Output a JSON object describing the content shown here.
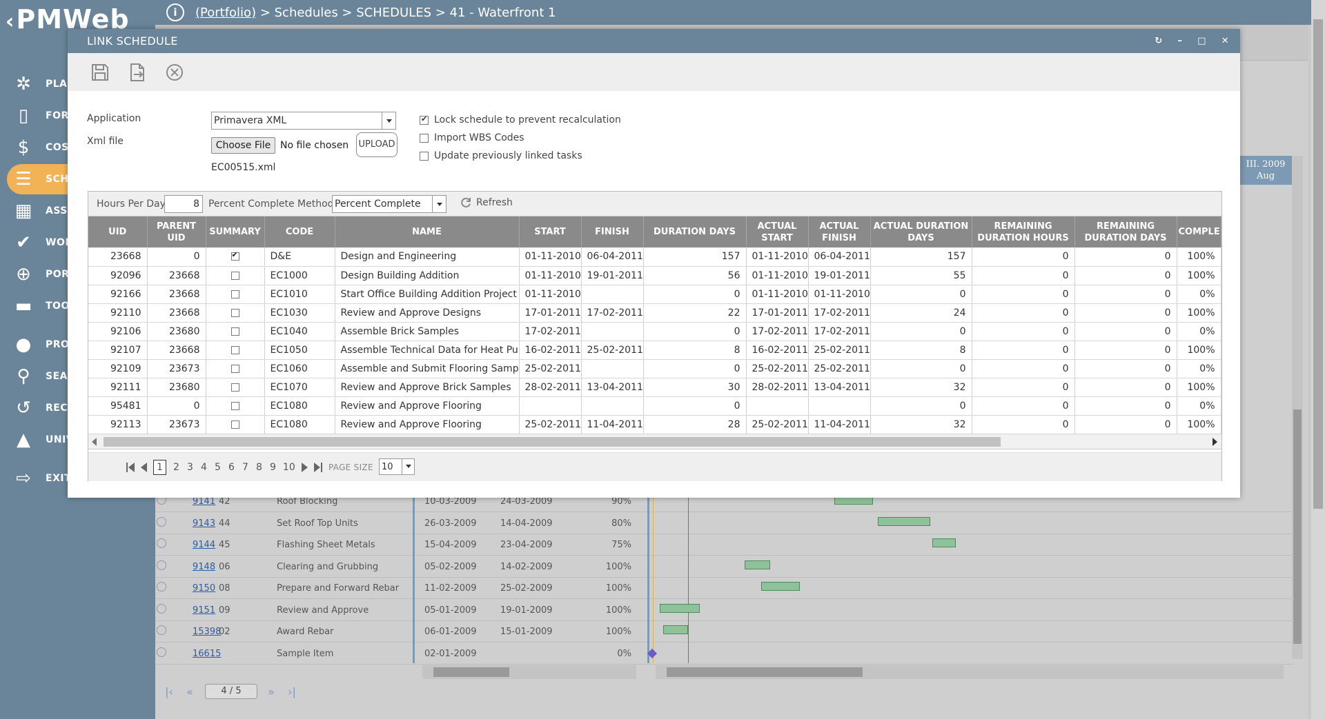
{
  "app": {
    "logo": "PMWeb"
  },
  "breadcrumb": {
    "portfolio": "(Portfolio)",
    "rest": " > Schedules > SCHEDULES > 41 - Waterfront 1"
  },
  "sidebar": {
    "items": [
      {
        "label": "PLAN",
        "icon": "lightbulb-icon"
      },
      {
        "label": "FORM",
        "icon": "clipboard-icon"
      },
      {
        "label": "COST",
        "icon": "dollar-icon"
      },
      {
        "label": "SCH",
        "icon": "schedule-icon"
      },
      {
        "label": "ASSE",
        "icon": "building-icon"
      },
      {
        "label": "WOR",
        "icon": "check-icon"
      },
      {
        "label": "PORT",
        "icon": "globe-icon"
      },
      {
        "label": "TOOL",
        "icon": "briefcase-icon"
      },
      {
        "label": "PROF",
        "icon": "person-icon"
      },
      {
        "label": "SEAR",
        "icon": "search-icon"
      },
      {
        "label": "RECE",
        "icon": "history-icon"
      },
      {
        "label": "UNIVERSITY",
        "icon": "graduation-cap-icon"
      },
      {
        "label": "EXIT",
        "icon": "exit-icon"
      }
    ]
  },
  "background": {
    "timeline_head": {
      "line1": "III. 2009",
      "line2": "Aug"
    },
    "rows": [
      {
        "id": "9141",
        "num": "42",
        "name": "Roof Blocking",
        "start": "10-03-2009",
        "finish": "24-03-2009",
        "pct": "90%"
      },
      {
        "id": "9143",
        "num": "44",
        "name": "Set Roof Top Units",
        "start": "26-03-2009",
        "finish": "14-04-2009",
        "pct": "80%"
      },
      {
        "id": "9144",
        "num": "45",
        "name": "Flashing Sheet Metals",
        "start": "15-04-2009",
        "finish": "23-04-2009",
        "pct": "75%"
      },
      {
        "id": "9148",
        "num": "06",
        "name": "Clearing and Grubbing",
        "start": "05-02-2009",
        "finish": "14-02-2009",
        "pct": "100%"
      },
      {
        "id": "9150",
        "num": "08",
        "name": "Prepare and Forward Rebar",
        "start": "11-02-2009",
        "finish": "25-02-2009",
        "pct": "100%"
      },
      {
        "id": "9151",
        "num": "09",
        "name": "Review and Approve",
        "start": "05-01-2009",
        "finish": "19-01-2009",
        "pct": "100%"
      },
      {
        "id": "15398",
        "num": "02",
        "name": "Award Rebar",
        "start": "06-01-2009",
        "finish": "15-01-2009",
        "pct": "100%"
      },
      {
        "id": "16615",
        "num": "",
        "name": "Sample Item",
        "start": "02-01-2009",
        "finish": "",
        "pct": "0%"
      }
    ],
    "pager": {
      "page": "4 / 5"
    }
  },
  "modal": {
    "title": "LINK SCHEDULE",
    "form": {
      "application_label": "Application",
      "application_value": "Primavera XML",
      "xml_label": "Xml file",
      "choose_file": "Choose File",
      "no_file": "No file chosen",
      "upload": "UPLOAD",
      "xml_filename": "EC00515.xml",
      "options": [
        {
          "label": "Lock schedule to prevent recalculation",
          "checked": true
        },
        {
          "label": "Import WBS Codes",
          "checked": false
        },
        {
          "label": "Update previously linked tasks",
          "checked": false
        }
      ]
    },
    "grid_toolbar": {
      "hours_label": "Hours Per Day",
      "hours_value": "8",
      "pcm_label": "Percent Complete Method",
      "pcm_value": "Percent Complete",
      "refresh": "Refresh"
    },
    "columns": [
      "UID",
      "PARENT UID",
      "SUMMARY",
      "CODE",
      "NAME",
      "START",
      "FINISH",
      "DURATION DAYS",
      "ACTUAL START",
      "ACTUAL FINISH",
      "ACTUAL DURATION DAYS",
      "REMAINING DURATION HOURS",
      "REMAINING DURATION DAYS",
      "COMPLE"
    ],
    "rows": [
      {
        "uid": "23668",
        "parent": "0",
        "summary": true,
        "code": "D&E",
        "name": "Design and Engineering",
        "start": "01-11-2010",
        "finish": "06-04-2011",
        "dur": "157",
        "astart": "01-11-2010",
        "afinish": "06-04-2011",
        "adur": "157",
        "rhours": "0",
        "rdays": "0",
        "pct": "100%"
      },
      {
        "uid": "92096",
        "parent": "23668",
        "summary": false,
        "code": "EC1000",
        "name": "Design Building Addition",
        "start": "01-11-2010",
        "finish": "19-01-2011",
        "dur": "56",
        "astart": "01-11-2010",
        "afinish": "19-01-2011",
        "adur": "55",
        "rhours": "0",
        "rdays": "0",
        "pct": "100%"
      },
      {
        "uid": "92166",
        "parent": "23668",
        "summary": false,
        "code": "EC1010",
        "name": "Start Office Building Addition Project",
        "start": "01-11-2010",
        "finish": "",
        "dur": "0",
        "astart": "01-11-2010",
        "afinish": "01-11-2010",
        "adur": "0",
        "rhours": "0",
        "rdays": "0",
        "pct": "0%"
      },
      {
        "uid": "92110",
        "parent": "23668",
        "summary": false,
        "code": "EC1030",
        "name": "Review and Approve Designs",
        "start": "17-01-2011",
        "finish": "17-02-2011",
        "dur": "22",
        "astart": "17-01-2011",
        "afinish": "17-02-2011",
        "adur": "24",
        "rhours": "0",
        "rdays": "0",
        "pct": "100%"
      },
      {
        "uid": "92106",
        "parent": "23680",
        "summary": false,
        "code": "EC1040",
        "name": "Assemble Brick Samples",
        "start": "17-02-2011",
        "finish": "",
        "dur": "0",
        "astart": "17-02-2011",
        "afinish": "17-02-2011",
        "adur": "0",
        "rhours": "0",
        "rdays": "0",
        "pct": "0%"
      },
      {
        "uid": "92107",
        "parent": "23668",
        "summary": false,
        "code": "EC1050",
        "name": "Assemble Technical Data for Heat Pump",
        "start": "16-02-2011",
        "finish": "25-02-2011",
        "dur": "8",
        "astart": "16-02-2011",
        "afinish": "25-02-2011",
        "adur": "8",
        "rhours": "0",
        "rdays": "0",
        "pct": "100%"
      },
      {
        "uid": "92109",
        "parent": "23673",
        "summary": false,
        "code": "EC1060",
        "name": "Assemble and Submit Flooring Samples",
        "start": "25-02-2011",
        "finish": "",
        "dur": "0",
        "astart": "25-02-2011",
        "afinish": "25-02-2011",
        "adur": "0",
        "rhours": "0",
        "rdays": "0",
        "pct": "0%"
      },
      {
        "uid": "92111",
        "parent": "23680",
        "summary": false,
        "code": "EC1070",
        "name": "Review and Approve Brick Samples",
        "start": "28-02-2011",
        "finish": "13-04-2011",
        "dur": "30",
        "astart": "28-02-2011",
        "afinish": "13-04-2011",
        "adur": "32",
        "rhours": "0",
        "rdays": "0",
        "pct": "100%"
      },
      {
        "uid": "95481",
        "parent": "0",
        "summary": false,
        "code": "EC1080",
        "name": "Review and Approve Flooring",
        "start": "",
        "finish": "",
        "dur": "0",
        "astart": "",
        "afinish": "",
        "adur": "0",
        "rhours": "0",
        "rdays": "0",
        "pct": "0%"
      },
      {
        "uid": "92113",
        "parent": "23673",
        "summary": false,
        "code": "EC1080",
        "name": "Review and Approve Flooring",
        "start": "25-02-2011",
        "finish": "11-04-2011",
        "dur": "28",
        "astart": "25-02-2011",
        "afinish": "11-04-2011",
        "adur": "32",
        "rhours": "0",
        "rdays": "0",
        "pct": "100%"
      }
    ],
    "pager": {
      "pages": [
        "1",
        "2",
        "3",
        "4",
        "5",
        "6",
        "7",
        "8",
        "9",
        "10"
      ],
      "current": "1",
      "page_size_label": "PAGE SIZE",
      "page_size": "10"
    }
  }
}
